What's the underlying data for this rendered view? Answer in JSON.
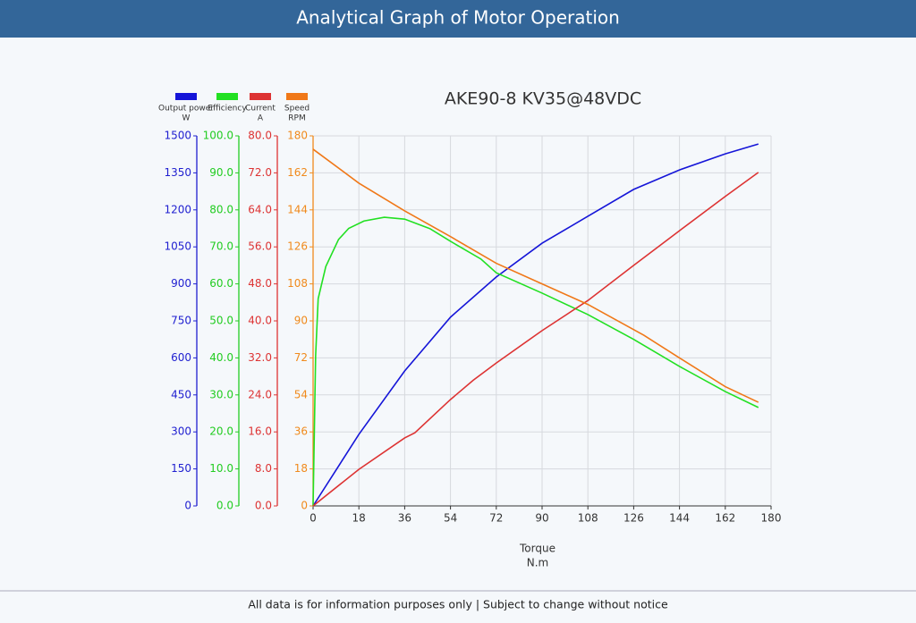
{
  "header": {
    "title": "Analytical Graph of Motor Operation"
  },
  "footer": {
    "text": "All data is for information purposes only | Subject to change without notice"
  },
  "chart_data": {
    "type": "line",
    "title": "AKE90-8 KV35@48VDC",
    "xlabel": "Torque",
    "xunit": "N.m",
    "xlim": [
      0,
      180
    ],
    "xticks": [
      0,
      18,
      36,
      54,
      72,
      90,
      108,
      126,
      144,
      162,
      180
    ],
    "grid": true,
    "axes": [
      {
        "color": "#1f1fd0",
        "lim": [
          0,
          1500
        ],
        "ticks": [
          0,
          150,
          300,
          450,
          600,
          750,
          900,
          1050,
          1200,
          1350,
          1500
        ]
      },
      {
        "color": "#22cc22",
        "lim": [
          0,
          100
        ],
        "ticks": [
          {
            "value": 0,
            "label": "0.0"
          },
          {
            "value": 10,
            "label": "10.0"
          },
          {
            "value": 20,
            "label": "20.0"
          },
          {
            "value": 30,
            "label": "30.0"
          },
          {
            "value": 40,
            "label": "40.0"
          },
          {
            "value": 50,
            "label": "50.0"
          },
          {
            "value": 60,
            "label": "60.0"
          },
          {
            "value": 70,
            "label": "70.0"
          },
          {
            "value": 80,
            "label": "80.0"
          },
          {
            "value": 90,
            "label": "90.0"
          },
          {
            "value": 100,
            "label": "100.0"
          }
        ]
      },
      {
        "color": "#dd3333",
        "lim": [
          0,
          80
        ],
        "ticks": [
          {
            "value": 0,
            "label": "0.0"
          },
          {
            "value": 8,
            "label": "8.0"
          },
          {
            "value": 16,
            "label": "16.0"
          },
          {
            "value": 24,
            "label": "24.0"
          },
          {
            "value": 32,
            "label": "32.0"
          },
          {
            "value": 40,
            "label": "40.0"
          },
          {
            "value": 48,
            "label": "48.0"
          },
          {
            "value": 56,
            "label": "56.0"
          },
          {
            "value": 64,
            "label": "64.0"
          },
          {
            "value": 72,
            "label": "72.0"
          },
          {
            "value": 80,
            "label": "80.0"
          }
        ]
      },
      {
        "color": "#f08a1c",
        "lim": [
          0,
          180
        ],
        "ticks": [
          0,
          18,
          36,
          54,
          72,
          90,
          108,
          126,
          144,
          162,
          180
        ]
      }
    ],
    "series": [
      {
        "name": "Output power",
        "unit": "W",
        "color": "#1515d8",
        "axis": 0,
        "x": [
          0,
          18,
          36,
          54,
          72,
          90,
          108,
          126,
          144,
          162,
          175
        ],
        "values": [
          0,
          290,
          547,
          765,
          928,
          1065,
          1174,
          1283,
          1362,
          1427,
          1467
        ]
      },
      {
        "name": "Efficiency",
        "color": "#22e022",
        "axis": 1,
        "x": [
          0,
          1,
          2,
          5,
          10,
          14,
          20,
          28,
          36,
          46,
          54,
          66,
          72,
          90,
          108,
          126,
          144,
          162,
          175
        ],
        "values": [
          0,
          40.6,
          56,
          64.7,
          72,
          75,
          77,
          78,
          77.5,
          74.9,
          71.5,
          66.7,
          63,
          57.5,
          51.7,
          45,
          37.7,
          30.9,
          26.6
        ]
      },
      {
        "name": "Current",
        "unit": "A",
        "color": "#dd3333",
        "axis": 2,
        "x": [
          0,
          18,
          36,
          40,
          54,
          63,
          72,
          90,
          108,
          126,
          144,
          162,
          175
        ],
        "values": [
          0,
          7.9,
          14.7,
          15.8,
          23,
          27.2,
          30.9,
          37.9,
          44.4,
          52,
          59.5,
          66.9,
          72.1
        ]
      },
      {
        "name": "Speed",
        "unit": "RPM",
        "color": "#f07818",
        "axis": 3,
        "x": [
          0,
          18,
          36,
          54,
          72,
          90,
          108,
          130,
          144,
          162,
          175
        ],
        "values": [
          173.5,
          157,
          143.5,
          131,
          118,
          108,
          98,
          83,
          72,
          58,
          50.4
        ]
      }
    ]
  }
}
